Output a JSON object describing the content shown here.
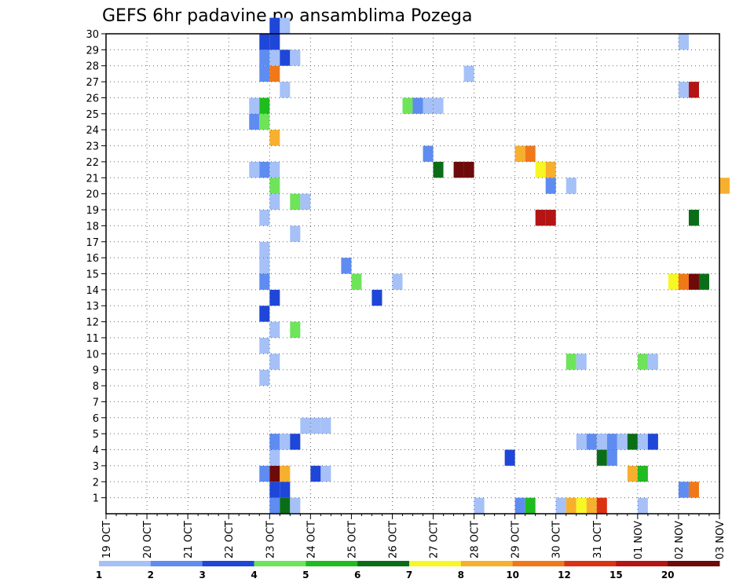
{
  "chart_data": {
    "type": "heatmap",
    "title": "GEFS 6hr padavine po ansamblima Pozega",
    "x_labels": [
      "19 OCT",
      "20 OCT",
      "21 OCT",
      "22 OCT",
      "23 OCT",
      "24 OCT",
      "25 OCT",
      "26 OCT",
      "27 OCT",
      "28 OCT",
      "29 OCT",
      "30 OCT",
      "31 OCT",
      "01 NOV",
      "02 NOV",
      "03 NOV"
    ],
    "y_labels": [
      "1",
      "2",
      "3",
      "4",
      "5",
      "6",
      "7",
      "8",
      "9",
      "10",
      "11",
      "12",
      "13",
      "14",
      "15",
      "16",
      "17",
      "18",
      "19",
      "20",
      "21",
      "22",
      "23",
      "24",
      "25",
      "26",
      "27",
      "28",
      "29",
      "30"
    ],
    "y_range": [
      0,
      30
    ],
    "steps_per_day": 4,
    "grid": "dotted",
    "legend": {
      "position": "bottom",
      "labels": [
        "1",
        "2",
        "3",
        "4",
        "5",
        "6",
        "7",
        "8",
        "10",
        "12",
        "15",
        "20"
      ],
      "colors": [
        "#a5c1f7",
        "#5f8cf0",
        "#1e46d8",
        "#6ee45a",
        "#1ebc1e",
        "#0a6e18",
        "#f7f723",
        "#f7b02e",
        "#f07819",
        "#dc3214",
        "#b41414",
        "#6e0a0a"
      ]
    },
    "cells": [
      {
        "member": 0,
        "step": 16,
        "level": 2
      },
      {
        "member": 0,
        "step": 17,
        "level": 6
      },
      {
        "member": 0,
        "step": 18,
        "level": 1
      },
      {
        "member": 0,
        "step": 36,
        "level": 1
      },
      {
        "member": 0,
        "step": 40,
        "level": 2
      },
      {
        "member": 0,
        "step": 41,
        "level": 5
      },
      {
        "member": 0,
        "step": 44,
        "level": 1
      },
      {
        "member": 0,
        "step": 45,
        "level": 8
      },
      {
        "member": 0,
        "step": 46,
        "level": 7
      },
      {
        "member": 0,
        "step": 47,
        "level": 8
      },
      {
        "member": 0,
        "step": 48,
        "level": 10
      },
      {
        "member": 0,
        "step": 52,
        "level": 1
      },
      {
        "member": 1,
        "step": 16,
        "level": 3
      },
      {
        "member": 1,
        "step": 17,
        "level": 3
      },
      {
        "member": 1,
        "step": 56,
        "level": 2
      },
      {
        "member": 1,
        "step": 57,
        "level": 9
      },
      {
        "member": 2,
        "step": 15,
        "level": 2
      },
      {
        "member": 2,
        "step": 16,
        "level": 12
      },
      {
        "member": 2,
        "step": 17,
        "level": 8
      },
      {
        "member": 2,
        "step": 20,
        "level": 3
      },
      {
        "member": 2,
        "step": 21,
        "level": 1
      },
      {
        "member": 2,
        "step": 51,
        "level": 8
      },
      {
        "member": 2,
        "step": 52,
        "level": 5
      },
      {
        "member": 3,
        "step": 16,
        "level": 1
      },
      {
        "member": 3,
        "step": 39,
        "level": 3
      },
      {
        "member": 3,
        "step": 48,
        "level": 6
      },
      {
        "member": 3,
        "step": 49,
        "level": 2
      },
      {
        "member": 4,
        "step": 16,
        "level": 2
      },
      {
        "member": 4,
        "step": 17,
        "level": 1
      },
      {
        "member": 4,
        "step": 18,
        "level": 3
      },
      {
        "member": 4,
        "step": 46,
        "level": 1
      },
      {
        "member": 4,
        "step": 47,
        "level": 2
      },
      {
        "member": 4,
        "step": 48,
        "level": 1
      },
      {
        "member": 4,
        "step": 49,
        "level": 2
      },
      {
        "member": 4,
        "step": 50,
        "level": 1
      },
      {
        "member": 4,
        "step": 51,
        "level": 6
      },
      {
        "member": 4,
        "step": 52,
        "level": 1
      },
      {
        "member": 4,
        "step": 53,
        "level": 3
      },
      {
        "member": 5,
        "step": 19,
        "level": 1
      },
      {
        "member": 5,
        "step": 20,
        "level": 1
      },
      {
        "member": 5,
        "step": 21,
        "level": 1
      },
      {
        "member": 8,
        "step": 15,
        "level": 1
      },
      {
        "member": 9,
        "step": 16,
        "level": 1
      },
      {
        "member": 9,
        "step": 45,
        "level": 4
      },
      {
        "member": 9,
        "step": 46,
        "level": 1
      },
      {
        "member": 9,
        "step": 52,
        "level": 4
      },
      {
        "member": 9,
        "step": 53,
        "level": 1
      },
      {
        "member": 10,
        "step": 15,
        "level": 1
      },
      {
        "member": 11,
        "step": 16,
        "level": 1
      },
      {
        "member": 11,
        "step": 18,
        "level": 4
      },
      {
        "member": 12,
        "step": 15,
        "level": 3
      },
      {
        "member": 13,
        "step": 16,
        "level": 3
      },
      {
        "member": 13,
        "step": 26,
        "level": 3
      },
      {
        "member": 14,
        "step": 15,
        "level": 2
      },
      {
        "member": 14,
        "step": 24,
        "level": 4
      },
      {
        "member": 14,
        "step": 28,
        "level": 1
      },
      {
        "member": 14,
        "step": 55,
        "level": 7
      },
      {
        "member": 14,
        "step": 56,
        "level": 9
      },
      {
        "member": 14,
        "step": 57,
        "level": 12
      },
      {
        "member": 14,
        "step": 58,
        "level": 6
      },
      {
        "member": 15,
        "step": 15,
        "level": 1
      },
      {
        "member": 15,
        "step": 23,
        "level": 2
      },
      {
        "member": 16,
        "step": 15,
        "level": 1
      },
      {
        "member": 17,
        "step": 18,
        "level": 1
      },
      {
        "member": 18,
        "step": 15,
        "level": 1
      },
      {
        "member": 18,
        "step": 42,
        "level": 11
      },
      {
        "member": 18,
        "step": 43,
        "level": 11
      },
      {
        "member": 18,
        "step": 57,
        "level": 6
      },
      {
        "member": 19,
        "step": 16,
        "level": 1
      },
      {
        "member": 19,
        "step": 18,
        "level": 4
      },
      {
        "member": 19,
        "step": 19,
        "level": 1
      },
      {
        "member": 20,
        "step": 16,
        "level": 4
      },
      {
        "member": 20,
        "step": 43,
        "level": 2
      },
      {
        "member": 20,
        "step": 45,
        "level": 1
      },
      {
        "member": 20,
        "step": 60,
        "level": 8
      },
      {
        "member": 21,
        "step": 14,
        "level": 1
      },
      {
        "member": 21,
        "step": 15,
        "level": 2
      },
      {
        "member": 21,
        "step": 16,
        "level": 1
      },
      {
        "member": 21,
        "step": 32,
        "level": 6
      },
      {
        "member": 21,
        "step": 34,
        "level": 12
      },
      {
        "member": 21,
        "step": 35,
        "level": 12
      },
      {
        "member": 21,
        "step": 42,
        "level": 7
      },
      {
        "member": 21,
        "step": 43,
        "level": 8
      },
      {
        "member": 22,
        "step": 31,
        "level": 2
      },
      {
        "member": 22,
        "step": 40,
        "level": 8
      },
      {
        "member": 22,
        "step": 41,
        "level": 9
      },
      {
        "member": 23,
        "step": 16,
        "level": 8
      },
      {
        "member": 24,
        "step": 14,
        "level": 2
      },
      {
        "member": 24,
        "step": 15,
        "level": 4
      },
      {
        "member": 25,
        "step": 14,
        "level": 1
      },
      {
        "member": 25,
        "step": 15,
        "level": 5
      },
      {
        "member": 25,
        "step": 29,
        "level": 4
      },
      {
        "member": 25,
        "step": 30,
        "level": 2
      },
      {
        "member": 25,
        "step": 31,
        "level": 1
      },
      {
        "member": 25,
        "step": 32,
        "level": 1
      },
      {
        "member": 26,
        "step": 17,
        "level": 1
      },
      {
        "member": 26,
        "step": 56,
        "level": 1
      },
      {
        "member": 26,
        "step": 57,
        "level": 11
      },
      {
        "member": 27,
        "step": 15,
        "level": 2
      },
      {
        "member": 27,
        "step": 16,
        "level": 9
      },
      {
        "member": 27,
        "step": 35,
        "level": 1
      },
      {
        "member": 28,
        "step": 15,
        "level": 2
      },
      {
        "member": 28,
        "step": 16,
        "level": 1
      },
      {
        "member": 28,
        "step": 17,
        "level": 3
      },
      {
        "member": 28,
        "step": 18,
        "level": 1
      },
      {
        "member": 29,
        "step": 15,
        "level": 3
      },
      {
        "member": 29,
        "step": 16,
        "level": 3
      },
      {
        "member": 29,
        "step": 56,
        "level": 1
      },
      {
        "member": 30,
        "step": 16,
        "level": 3
      },
      {
        "member": 30,
        "step": 17,
        "level": 1
      }
    ]
  }
}
